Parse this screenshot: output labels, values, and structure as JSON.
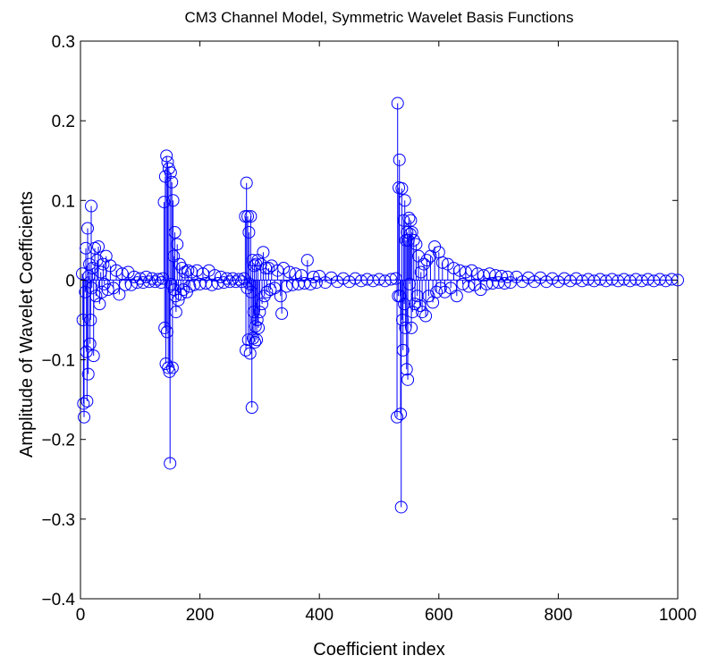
{
  "chart_data": {
    "type": "stem",
    "title": "CM3 Channel Model, Symmetric Wavelet Basis Functions",
    "xlabel": "Coefficient index",
    "ylabel": "Amplitude of Wavelet Coefficients",
    "xlim": [
      0,
      1000
    ],
    "ylim": [
      -0.4,
      0.3
    ],
    "xticks": [
      0,
      200,
      400,
      600,
      800,
      1000
    ],
    "xtick_labels": [
      "0",
      "200",
      "400",
      "600",
      "800",
      "1000"
    ],
    "yticks": [
      -0.4,
      -0.3,
      -0.2,
      -0.1,
      0,
      0.1,
      0.2,
      0.3
    ],
    "ytick_labels": [
      "−0.4",
      "−0.3",
      "−0.2",
      "−0.1",
      "0",
      "0.1",
      "0.2",
      "0.3"
    ],
    "grid": false,
    "series": [
      {
        "color": "#0000ff",
        "marker": "open-circle",
        "points": [
          [
            3,
            0.008
          ],
          [
            4,
            -0.05
          ],
          [
            5,
            -0.155
          ],
          [
            6,
            -0.172
          ],
          [
            8,
            -0.015
          ],
          [
            9,
            0.04
          ],
          [
            10,
            -0.09
          ],
          [
            11,
            -0.152
          ],
          [
            12,
            0.065
          ],
          [
            13,
            -0.118
          ],
          [
            14,
            0.005
          ],
          [
            15,
            0.02
          ],
          [
            16,
            -0.08
          ],
          [
            17,
            -0.05
          ],
          [
            18,
            0.093
          ],
          [
            19,
            -0.01
          ],
          [
            20,
            0.015
          ],
          [
            22,
            -0.095
          ],
          [
            24,
            0.04
          ],
          [
            26,
            -0.02
          ],
          [
            28,
            0.025
          ],
          [
            30,
            0.042
          ],
          [
            32,
            -0.03
          ],
          [
            34,
            0.01
          ],
          [
            36,
            -0.015
          ],
          [
            38,
            0.02
          ],
          [
            40,
            -0.005
          ],
          [
            43,
            0.03
          ],
          [
            46,
            -0.012
          ],
          [
            50,
            0.018
          ],
          [
            55,
            -0.01
          ],
          [
            60,
            0.012
          ],
          [
            65,
            -0.018
          ],
          [
            70,
            0.008
          ],
          [
            75,
            -0.006
          ],
          [
            80,
            0.01
          ],
          [
            85,
            -0.006
          ],
          [
            90,
            0.004
          ],
          [
            95,
            -0.003
          ],
          [
            100,
            0.002
          ],
          [
            105,
            -0.003
          ],
          [
            110,
            0.004
          ],
          [
            115,
            -0.002
          ],
          [
            120,
            0.002
          ],
          [
            125,
            -0.002
          ],
          [
            130,
            0.001
          ],
          [
            135,
            -0.003
          ],
          [
            138,
            0.002
          ],
          [
            140,
            0.098
          ],
          [
            141,
            -0.06
          ],
          [
            142,
            0.13
          ],
          [
            143,
            -0.105
          ],
          [
            144,
            0.156
          ],
          [
            145,
            -0.065
          ],
          [
            146,
            0.148
          ],
          [
            147,
            -0.11
          ],
          [
            148,
            0.14
          ],
          [
            149,
            -0.115
          ],
          [
            150,
            -0.23
          ],
          [
            151,
            0.135
          ],
          [
            152,
            -0.005
          ],
          [
            153,
            0.123
          ],
          [
            154,
            -0.11
          ],
          [
            155,
            0.1
          ],
          [
            156,
            0.03
          ],
          [
            157,
            -0.012
          ],
          [
            158,
            0.06
          ],
          [
            159,
            -0.02
          ],
          [
            160,
            -0.04
          ],
          [
            162,
            0.045
          ],
          [
            164,
            -0.025
          ],
          [
            166,
            0.02
          ],
          [
            168,
            -0.018
          ],
          [
            170,
            0.015
          ],
          [
            172,
            -0.012
          ],
          [
            175,
            0.01
          ],
          [
            178,
            -0.015
          ],
          [
            180,
            0.012
          ],
          [
            183,
            -0.008
          ],
          [
            186,
            0.01
          ],
          [
            190,
            -0.006
          ],
          [
            195,
            0.012
          ],
          [
            200,
            -0.005
          ],
          [
            205,
            0.008
          ],
          [
            210,
            -0.004
          ],
          [
            215,
            0.012
          ],
          [
            220,
            -0.006
          ],
          [
            225,
            0.006
          ],
          [
            230,
            -0.004
          ],
          [
            235,
            0.004
          ],
          [
            240,
            -0.003
          ],
          [
            245,
            0.002
          ],
          [
            250,
            -0.002
          ],
          [
            255,
            0.002
          ],
          [
            260,
            -0.002
          ],
          [
            265,
            0.001
          ],
          [
            270,
            -0.002
          ],
          [
            274,
            0.002
          ],
          [
            276,
            0.08
          ],
          [
            277,
            -0.088
          ],
          [
            278,
            0.122
          ],
          [
            279,
            -0.01
          ],
          [
            280,
            0.08
          ],
          [
            281,
            -0.075
          ],
          [
            282,
            0.06
          ],
          [
            283,
            -0.005
          ],
          [
            284,
            -0.092
          ],
          [
            285,
            0.08
          ],
          [
            286,
            -0.015
          ],
          [
            287,
            -0.16
          ],
          [
            288,
            0.025
          ],
          [
            289,
            -0.073
          ],
          [
            290,
            -0.04
          ],
          [
            291,
            0.018
          ],
          [
            292,
            -0.078
          ],
          [
            293,
            -0.058
          ],
          [
            294,
            0.02
          ],
          [
            295,
            -0.075
          ],
          [
            296,
            -0.05
          ],
          [
            297,
            0.025
          ],
          [
            298,
            -0.06
          ],
          [
            300,
            -0.04
          ],
          [
            302,
            0.02
          ],
          [
            304,
            -0.03
          ],
          [
            306,
            0.035
          ],
          [
            308,
            -0.02
          ],
          [
            310,
            0.015
          ],
          [
            312,
            -0.015
          ],
          [
            315,
            0.015
          ],
          [
            318,
            -0.012
          ],
          [
            320,
            0.018
          ],
          [
            325,
            -0.01
          ],
          [
            330,
            0.012
          ],
          [
            335,
            -0.02
          ],
          [
            337,
            -0.042
          ],
          [
            340,
            0.015
          ],
          [
            345,
            -0.008
          ],
          [
            350,
            0.01
          ],
          [
            355,
            -0.006
          ],
          [
            360,
            0.008
          ],
          [
            365,
            -0.005
          ],
          [
            370,
            0.006
          ],
          [
            375,
            -0.004
          ],
          [
            380,
            0.025
          ],
          [
            385,
            -0.005
          ],
          [
            390,
            0.004
          ],
          [
            395,
            -0.003
          ],
          [
            400,
            0.005
          ],
          [
            410,
            -0.003
          ],
          [
            420,
            0.003
          ],
          [
            430,
            -0.002
          ],
          [
            440,
            0.002
          ],
          [
            450,
            -0.002
          ],
          [
            460,
            0.002
          ],
          [
            470,
            -0.001
          ],
          [
            480,
            0.001
          ],
          [
            490,
            -0.001
          ],
          [
            500,
            0.001
          ],
          [
            510,
            -0.001
          ],
          [
            520,
            0.001
          ],
          [
            528,
            0.002
          ],
          [
            530,
            -0.172
          ],
          [
            531,
            0.222
          ],
          [
            532,
            -0.02
          ],
          [
            533,
            0.116
          ],
          [
            534,
            0.151
          ],
          [
            535,
            -0.02
          ],
          [
            536,
            -0.168
          ],
          [
            537,
            -0.285
          ],
          [
            538,
            0.115
          ],
          [
            539,
            -0.05
          ],
          [
            540,
            -0.088
          ],
          [
            541,
            0.075
          ],
          [
            542,
            -0.03
          ],
          [
            543,
            0.1
          ],
          [
            544,
            -0.06
          ],
          [
            545,
            0.05
          ],
          [
            546,
            -0.112
          ],
          [
            547,
            0.06
          ],
          [
            548,
            -0.125
          ],
          [
            549,
            0.05
          ],
          [
            550,
            0.078
          ],
          [
            551,
            -0.005
          ],
          [
            552,
            0.058
          ],
          [
            553,
            0.075
          ],
          [
            554,
            -0.06
          ],
          [
            555,
            0.06
          ],
          [
            556,
            -0.04
          ],
          [
            558,
            0.05
          ],
          [
            560,
            -0.03
          ],
          [
            562,
            0.045
          ],
          [
            564,
            -0.02
          ],
          [
            566,
            0.03
          ],
          [
            568,
            -0.032
          ],
          [
            570,
            0.01
          ],
          [
            572,
            -0.04
          ],
          [
            575,
            0.02
          ],
          [
            578,
            -0.045
          ],
          [
            580,
            0.025
          ],
          [
            583,
            -0.02
          ],
          [
            586,
            0.03
          ],
          [
            590,
            -0.028
          ],
          [
            593,
            0.042
          ],
          [
            596,
            -0.015
          ],
          [
            600,
            0.035
          ],
          [
            603,
            -0.01
          ],
          [
            606,
            0.022
          ],
          [
            610,
            -0.015
          ],
          [
            615,
            0.02
          ],
          [
            620,
            -0.01
          ],
          [
            625,
            0.015
          ],
          [
            630,
            -0.02
          ],
          [
            635,
            0.012
          ],
          [
            640,
            -0.005
          ],
          [
            645,
            0.01
          ],
          [
            650,
            -0.008
          ],
          [
            655,
            0.012
          ],
          [
            660,
            -0.006
          ],
          [
            665,
            0.008
          ],
          [
            670,
            -0.012
          ],
          [
            675,
            0.006
          ],
          [
            680,
            -0.005
          ],
          [
            685,
            0.008
          ],
          [
            690,
            -0.004
          ],
          [
            695,
            0.006
          ],
          [
            700,
            -0.003
          ],
          [
            705,
            0.005
          ],
          [
            710,
            -0.004
          ],
          [
            715,
            0.004
          ],
          [
            720,
            -0.003
          ],
          [
            730,
            0.004
          ],
          [
            740,
            -0.002
          ],
          [
            750,
            0.003
          ],
          [
            760,
            -0.002
          ],
          [
            770,
            0.003
          ],
          [
            780,
            -0.002
          ],
          [
            790,
            0.002
          ],
          [
            800,
            -0.002
          ],
          [
            810,
            0.002
          ],
          [
            820,
            -0.001
          ],
          [
            830,
            0.002
          ],
          [
            840,
            -0.001
          ],
          [
            850,
            0.001
          ],
          [
            860,
            -0.001
          ],
          [
            870,
            0.001
          ],
          [
            880,
            -0.001
          ],
          [
            890,
            0.001
          ],
          [
            900,
            -0.001
          ],
          [
            910,
            0.001
          ],
          [
            920,
            -0.001
          ],
          [
            930,
            0.001
          ],
          [
            940,
            -0.001
          ],
          [
            950,
            0.001
          ],
          [
            960,
            -0.001
          ],
          [
            970,
            0.001
          ],
          [
            980,
            -0.001
          ],
          [
            990,
            0.001
          ],
          [
            1000,
            0.0
          ]
        ]
      }
    ]
  }
}
